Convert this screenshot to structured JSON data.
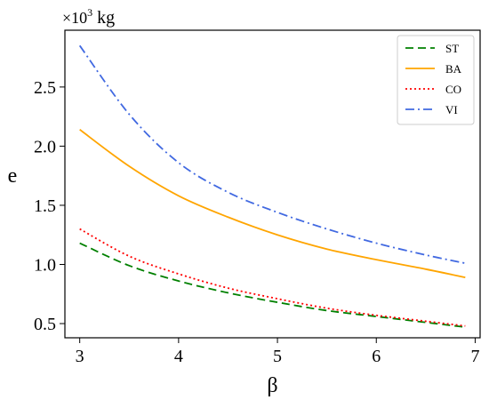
{
  "chart_data": {
    "type": "line",
    "title": "",
    "xlabel": "β",
    "ylabel": "e",
    "y_unit": {
      "prefix": "×10",
      "exponent": "3",
      "suffix": " kg"
    },
    "xlim": [
      2.85,
      7.05
    ],
    "ylim": [
      0.38,
      2.98
    ],
    "xticks": [
      3,
      4,
      5,
      6,
      7
    ],
    "xtick_labels": [
      "3",
      "4",
      "5",
      "6",
      "7"
    ],
    "yticks": [
      0.5,
      1.0,
      1.5,
      2.0,
      2.5
    ],
    "ytick_labels": [
      "0.5",
      "1.0",
      "1.5",
      "2.0",
      "2.5"
    ],
    "grid": false,
    "legend_position": "top-right",
    "x": [
      3.0,
      3.5,
      4.0,
      4.5,
      5.0,
      5.5,
      6.0,
      6.5,
      6.9
    ],
    "series": [
      {
        "name": "ST",
        "color": "#008000",
        "style": "dashed",
        "values": [
          1.18,
          0.99,
          0.86,
          0.76,
          0.68,
          0.61,
          0.56,
          0.51,
          0.47
        ]
      },
      {
        "name": "BA",
        "color": "#ffa500",
        "style": "solid",
        "values": [
          2.14,
          1.83,
          1.58,
          1.4,
          1.25,
          1.13,
          1.04,
          0.96,
          0.89
        ]
      },
      {
        "name": "CO",
        "color": "#ff0000",
        "style": "dotted",
        "values": [
          1.3,
          1.07,
          0.92,
          0.8,
          0.71,
          0.63,
          0.57,
          0.52,
          0.48
        ]
      },
      {
        "name": "VI",
        "color": "#4169e1",
        "style": "dashdot",
        "values": [
          2.85,
          2.27,
          1.86,
          1.61,
          1.44,
          1.3,
          1.18,
          1.08,
          1.01
        ]
      }
    ]
  }
}
